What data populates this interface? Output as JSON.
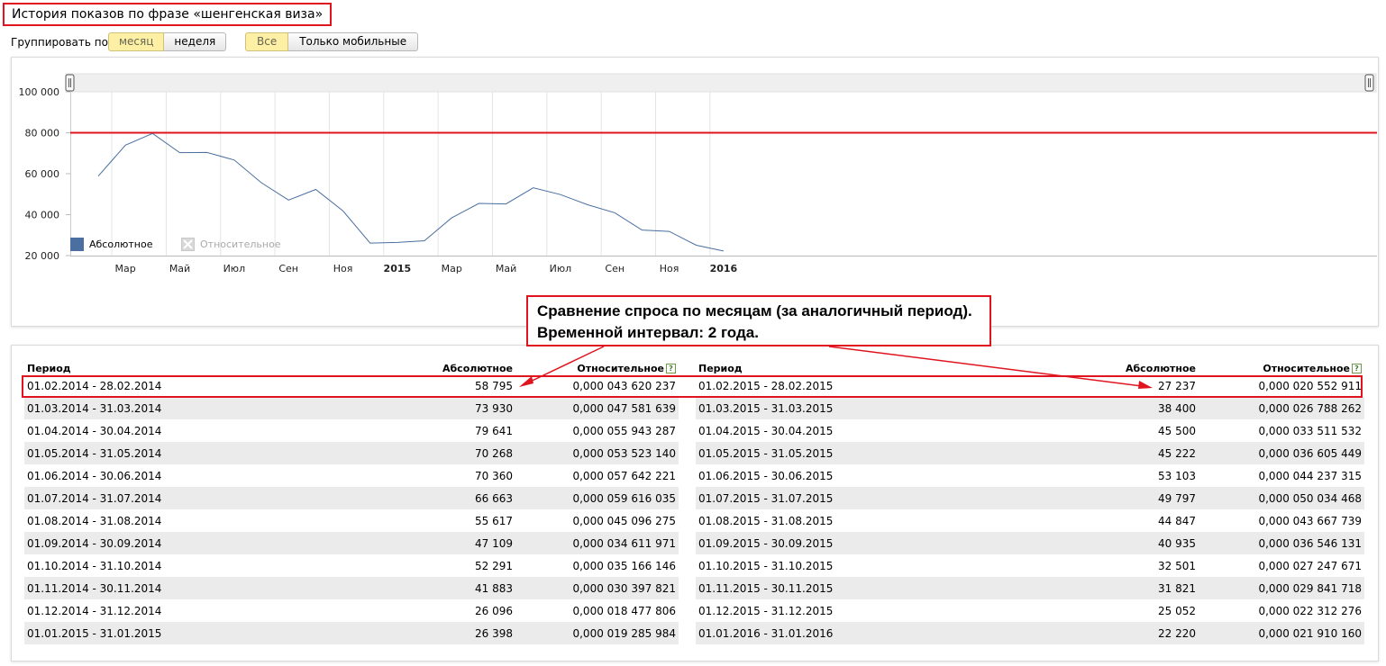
{
  "page": {
    "title": "История показов по фразе «шенгенская виза»",
    "group_label": "Группировать по:",
    "group_buttons": [
      {
        "label": "месяц",
        "active": true
      },
      {
        "label": "неделя",
        "active": false
      }
    ],
    "device_buttons": [
      {
        "label": "Все",
        "active": true
      },
      {
        "label": "Только мобильные",
        "active": false
      }
    ]
  },
  "chart_data": {
    "type": "line",
    "x": [
      "2014-02",
      "2014-03",
      "2014-04",
      "2014-05",
      "2014-06",
      "2014-07",
      "2014-08",
      "2014-09",
      "2014-10",
      "2014-11",
      "2014-12",
      "2015-01",
      "2015-02",
      "2015-03",
      "2015-04",
      "2015-05",
      "2015-06",
      "2015-07",
      "2015-08",
      "2015-09",
      "2015-10",
      "2015-11",
      "2015-12",
      "2016-01"
    ],
    "series": [
      {
        "values": [
          58795,
          73930,
          79641,
          70268,
          70360,
          66663,
          55617,
          47109,
          52291,
          41883,
          26096,
          26398,
          27237,
          38400,
          45500,
          45222,
          53103,
          49797,
          44847,
          40935,
          32501,
          31821,
          25052,
          22220
        ],
        "color": "#4a6fa0"
      }
    ],
    "ylim": [
      20000,
      100000
    ],
    "y_ticks": [
      "100 000",
      "80 000",
      "60 000",
      "40 000",
      "20 000"
    ],
    "y_tick_values": [
      100000,
      80000,
      60000,
      40000,
      20000
    ],
    "x_ticks": [
      {
        "date": "2014-03",
        "label": "Мар",
        "bold": false
      },
      {
        "date": "2014-05",
        "label": "Май",
        "bold": false
      },
      {
        "date": "2014-07",
        "label": "Июл",
        "bold": false
      },
      {
        "date": "2014-09",
        "label": "Сен",
        "bold": false
      },
      {
        "date": "2014-11",
        "label": "Ноя",
        "bold": false
      },
      {
        "date": "2015-01",
        "label": "2015",
        "bold": true
      },
      {
        "date": "2015-03",
        "label": "Мар",
        "bold": false
      },
      {
        "date": "2015-05",
        "label": "Май",
        "bold": false
      },
      {
        "date": "2015-07",
        "label": "Июл",
        "bold": false
      },
      {
        "date": "2015-09",
        "label": "Сен",
        "bold": false
      },
      {
        "date": "2015-11",
        "label": "Ноя",
        "bold": false
      },
      {
        "date": "2016-01",
        "label": "2016",
        "bold": true
      }
    ],
    "reference_line": {
      "value": 80000,
      "color": "#e0141e"
    },
    "grid": true,
    "legend": [
      {
        "label": "Абсолютное",
        "color": "#4a6fa0",
        "enabled": true
      },
      {
        "label": "Относительное",
        "color": "#bbbbbb",
        "enabled": false
      }
    ],
    "legend_position": "bottom-left"
  },
  "annotation": {
    "line1": "Сравнение спроса по месяцам (за аналогичный период).",
    "line2": "Временной интервал: 2 года.",
    "color": "#e0141e"
  },
  "table": {
    "headers": {
      "period": "Период",
      "absolute": "Абсолютное",
      "relative": "Относительное",
      "help": "?"
    },
    "left": [
      {
        "period": "01.02.2014 - 28.02.2014",
        "absolute": "58 795",
        "relative": "0,000 043 620 237"
      },
      {
        "period": "01.03.2014 - 31.03.2014",
        "absolute": "73 930",
        "relative": "0,000 047 581 639"
      },
      {
        "period": "01.04.2014 - 30.04.2014",
        "absolute": "79 641",
        "relative": "0,000 055 943 287"
      },
      {
        "period": "01.05.2014 - 31.05.2014",
        "absolute": "70 268",
        "relative": "0,000 053 523 140"
      },
      {
        "period": "01.06.2014 - 30.06.2014",
        "absolute": "70 360",
        "relative": "0,000 057 642 221"
      },
      {
        "period": "01.07.2014 - 31.07.2014",
        "absolute": "66 663",
        "relative": "0,000 059 616 035"
      },
      {
        "period": "01.08.2014 - 31.08.2014",
        "absolute": "55 617",
        "relative": "0,000 045 096 275"
      },
      {
        "period": "01.09.2014 - 30.09.2014",
        "absolute": "47 109",
        "relative": "0,000 034 611 971"
      },
      {
        "period": "01.10.2014 - 31.10.2014",
        "absolute": "52 291",
        "relative": "0,000 035 166 146"
      },
      {
        "period": "01.11.2014 - 30.11.2014",
        "absolute": "41 883",
        "relative": "0,000 030 397 821"
      },
      {
        "period": "01.12.2014 - 31.12.2014",
        "absolute": "26 096",
        "relative": "0,000 018 477 806"
      },
      {
        "period": "01.01.2015 - 31.01.2015",
        "absolute": "26 398",
        "relative": "0,000 019 285 984"
      }
    ],
    "right": [
      {
        "period": "01.02.2015 - 28.02.2015",
        "absolute": "27 237",
        "relative": "0,000 020 552 911"
      },
      {
        "period": "01.03.2015 - 31.03.2015",
        "absolute": "38 400",
        "relative": "0,000 026 788 262"
      },
      {
        "period": "01.04.2015 - 30.04.2015",
        "absolute": "45 500",
        "relative": "0,000 033 511 532"
      },
      {
        "period": "01.05.2015 - 31.05.2015",
        "absolute": "45 222",
        "relative": "0,000 036 605 449"
      },
      {
        "period": "01.06.2015 - 30.06.2015",
        "absolute": "53 103",
        "relative": "0,000 044 237 315"
      },
      {
        "period": "01.07.2015 - 31.07.2015",
        "absolute": "49 797",
        "relative": "0,000 050 034 468"
      },
      {
        "period": "01.08.2015 - 31.08.2015",
        "absolute": "44 847",
        "relative": "0,000 043 667 739"
      },
      {
        "period": "01.09.2015 - 30.09.2015",
        "absolute": "40 935",
        "relative": "0,000 036 546 131"
      },
      {
        "period": "01.10.2015 - 31.10.2015",
        "absolute": "32 501",
        "relative": "0,000 027 247 671"
      },
      {
        "period": "01.11.2015 - 30.11.2015",
        "absolute": "31 821",
        "relative": "0,000 029 841 718"
      },
      {
        "period": "01.12.2015 - 31.12.2015",
        "absolute": "25 052",
        "relative": "0,000 022 312 276"
      },
      {
        "period": "01.01.2016 - 31.01.2016",
        "absolute": "22 220",
        "relative": "0,000 021 910 160"
      }
    ]
  }
}
